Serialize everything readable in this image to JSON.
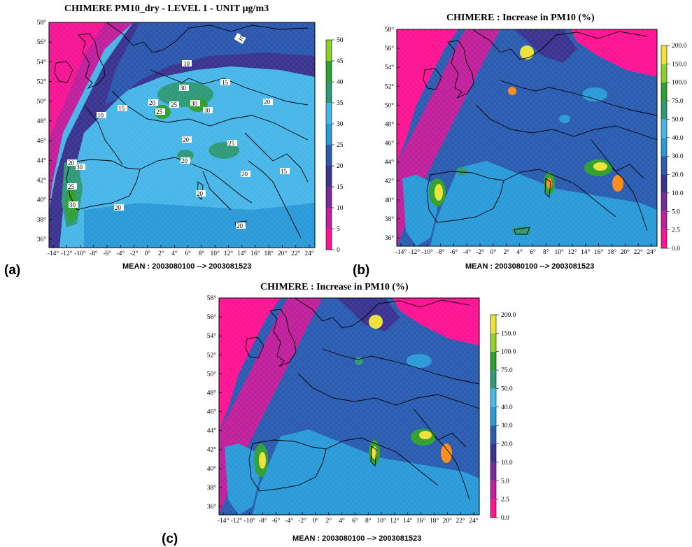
{
  "panels": {
    "a": {
      "label": "(a)",
      "title": "CHIMERE PM10_dry - LEVEL 1 - UNIT µg/m3",
      "footer": "MEAN : 2003080100 --> 2003081523",
      "colorbar": [
        "0",
        "5",
        "10",
        "15",
        "20",
        "25",
        "30",
        "35",
        "40",
        "45",
        "50"
      ],
      "contour_labels": [
        "10",
        "10",
        "15",
        "20",
        "20",
        "25",
        "25",
        "30",
        "30",
        "30",
        "15",
        "20",
        "20",
        "25",
        "20",
        "20",
        "20",
        "15",
        "10",
        "20",
        "30",
        "25",
        "30",
        "20"
      ]
    },
    "b": {
      "label": "(b)",
      "title": "CHIMERE : Increase in PM10 (%)",
      "footer": "MEAN : 2003080100 --> 2003081523",
      "colorbar": [
        "0.0",
        "2.5",
        "5.0",
        "10.0",
        "20.0",
        "30.0",
        "40.0",
        "50.0",
        "75.0",
        "100.0",
        "150.0",
        "200.0"
      ]
    },
    "c": {
      "label": "(c)",
      "title": "CHIMERE : Increase in PM10 (%)",
      "footer": "MEAN : 2003080100 --> 2003081523",
      "colorbar": [
        "0.0",
        "2.5",
        "5.0",
        "10.0",
        "20.0",
        "30.0",
        "40.0",
        "50.0",
        "75.0",
        "100.0",
        "150.0",
        "200.0"
      ]
    }
  },
  "lat_ticks": [
    "36°",
    "38°",
    "40°",
    "42°",
    "44°",
    "46°",
    "48°",
    "50°",
    "52°",
    "54°",
    "56°",
    "58°"
  ],
  "lon_ticks": [
    "-14°",
    "-12°",
    "-10°",
    "-8°",
    "-6°",
    "-4°",
    "-2°",
    "0°",
    "2°",
    "4°",
    "6°",
    "8°",
    "10°",
    "12°",
    "14°",
    "16°",
    "18°",
    "20°",
    "22°",
    "24°"
  ],
  "colors": {
    "pm_scale": [
      "#ff1493",
      "#c0209b",
      "#7a2a9a",
      "#3a3490",
      "#2a5cb0",
      "#2a9ad8",
      "#48b6e8",
      "#2f9a78",
      "#30a030",
      "#8fd12a",
      "#f0e03a",
      "#ff8c1a",
      "#e8201a"
    ],
    "increase_scale": [
      "#ff1493",
      "#c0209b",
      "#7a2a9a",
      "#3a3490",
      "#2a5cb0",
      "#2a9ad8",
      "#48b6e8",
      "#2f9a78",
      "#30a030",
      "#8fd12a",
      "#f0e03a",
      "#ff8c1a",
      "#e8201a"
    ]
  }
}
